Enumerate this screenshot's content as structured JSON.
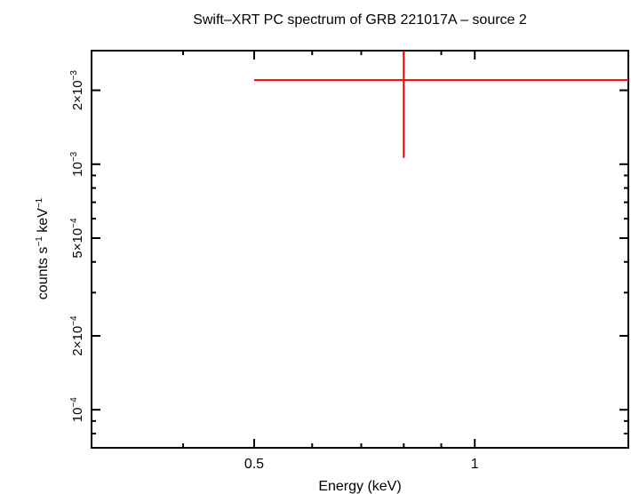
{
  "chart_data": {
    "type": "scatter",
    "title": "Swift–XRT PC spectrum of GRB 221017A – source 2",
    "xlabel": "Energy (keV)",
    "ylabel_parts": {
      "prefix": "counts s",
      "exp1": "−1",
      "mid": " keV",
      "exp2": "−1"
    },
    "x_scale": "log",
    "y_scale": "log",
    "xlim": [
      0.3,
      1.62
    ],
    "ylim": [
      7e-05,
      0.0029
    ],
    "x_ticks": [
      {
        "value": 0.5,
        "label": "0.5"
      },
      {
        "value": 1,
        "label": "1"
      }
    ],
    "y_ticks": [
      {
        "value": 0.0001,
        "mantissa": "10",
        "exp": "−4"
      },
      {
        "value": 0.0002,
        "mantissa": "2×10",
        "exp": "−4"
      },
      {
        "value": 0.0005,
        "mantissa": "5×10",
        "exp": "−4"
      },
      {
        "value": 0.001,
        "mantissa": "10",
        "exp": "−3"
      },
      {
        "value": 0.002,
        "mantissa": "2×10",
        "exp": "−3"
      }
    ],
    "series": [
      {
        "color": "#ff0000",
        "points": [
          {
            "x": 0.8,
            "y": 0.0022,
            "xerr": [
              0.5,
              1.62
            ],
            "yerr": [
              0.00106,
              0.0029
            ]
          }
        ]
      }
    ]
  }
}
